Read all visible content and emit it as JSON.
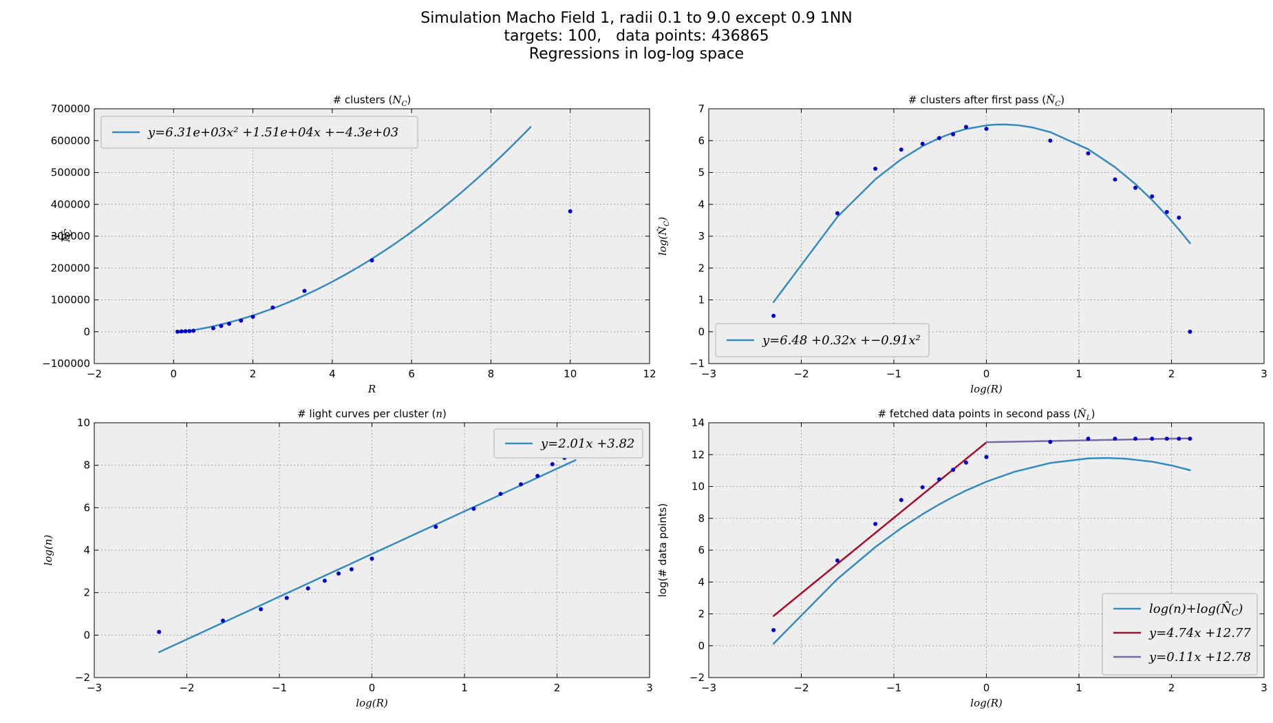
{
  "figure": {
    "title_lines": [
      "Simulation Macho Field 1, radii 0.1 to 9.0 except 0.9 1NN",
      "targets: 100,   data points: 436865",
      "Regressions in log-log space"
    ],
    "colors": {
      "points": "#0000cc",
      "fit_blue": "#348abd",
      "fit_red": "#a60628",
      "fit_purple": "#7a68a6",
      "axes_bg": "#eeeeee"
    }
  },
  "chart_data": [
    {
      "id": "clusters",
      "type": "scatter",
      "title": "# clusters (N_C)",
      "title_main": "# clusters (",
      "title_sym": "N",
      "title_sub": "C",
      "title_end": ")",
      "xlabel": "R",
      "ylabel_num": "1",
      "ylabel_den": "N",
      "ylabel_den_sub": "C",
      "xlim": [
        -2,
        12
      ],
      "ylim": [
        -100000,
        700000
      ],
      "xticks": [
        -2,
        0,
        2,
        4,
        6,
        8,
        10,
        12
      ],
      "yticks": [
        -100000,
        0,
        100000,
        200000,
        300000,
        400000,
        500000,
        600000,
        700000
      ],
      "grid": true,
      "legend_position": "upper-left",
      "points": {
        "x": [
          0.1,
          0.2,
          0.3,
          0.4,
          0.5,
          1.0,
          1.2,
          1.4,
          1.7,
          2.0,
          2.5,
          3.3,
          5.0,
          10.0
        ],
        "y": [
          0,
          1000,
          1500,
          2000,
          3000,
          11000,
          18000,
          25000,
          35000,
          47000,
          76000,
          128000,
          224000,
          378000
        ]
      },
      "series": [
        {
          "name": "y=6.31e+03x² +1.51e+04x +−4.3e+03",
          "color": "#348abd",
          "kind": "poly",
          "coef": [
            -4300,
            15100,
            6310
          ],
          "xrange": [
            0.1,
            9.0
          ]
        }
      ]
    },
    {
      "id": "first-pass",
      "type": "scatter",
      "title": "# clusters after first pass (N̂_C)",
      "title_main": "# clusters after first pass (",
      "title_sym": "N̂",
      "title_sub": "C",
      "title_end": ")",
      "xlabel": "log(R)",
      "ylabel": "log(N̂_C)",
      "ylabel_main": "log(",
      "ylabel_sym": "N̂",
      "ylabel_sub": "C",
      "ylabel_end": ")",
      "xlim": [
        -3,
        3
      ],
      "ylim": [
        -1,
        7
      ],
      "xticks": [
        -3,
        -2,
        -1,
        0,
        1,
        2,
        3
      ],
      "yticks": [
        -1,
        0,
        1,
        2,
        3,
        4,
        5,
        6,
        7
      ],
      "grid": true,
      "legend_position": "lower-left",
      "points": {
        "x": [
          -2.3,
          -1.61,
          -1.2,
          -0.92,
          -0.69,
          -0.51,
          -0.36,
          -0.22,
          0.0,
          0.69,
          1.1,
          1.39,
          1.61,
          1.79,
          1.95,
          2.08,
          2.2
        ],
        "y": [
          0.5,
          3.72,
          5.12,
          5.72,
          5.9,
          6.08,
          6.2,
          6.43,
          6.37,
          6.0,
          5.6,
          4.78,
          4.52,
          4.25,
          3.76,
          3.58,
          0.0
        ]
      },
      "series": [
        {
          "name": "y=6.48 +0.32x +−0.91x²",
          "color": "#348abd",
          "kind": "poly_sampled",
          "coef": [
            6.48,
            0.32,
            -0.91
          ],
          "xs": [
            -2.3,
            -1.61,
            -1.2,
            -0.92,
            -0.69,
            -0.51,
            -0.36,
            -0.22,
            0.0,
            0.1,
            0.2,
            0.35,
            0.5,
            0.69,
            1.1,
            1.39,
            1.61,
            1.79,
            1.95,
            2.08,
            2.2
          ]
        }
      ]
    },
    {
      "id": "light-curves",
      "type": "scatter",
      "title": "# light curves per cluster (n)",
      "title_main": "# light curves per cluster (",
      "title_sym": "n",
      "title_end": ")",
      "xlabel": "log(R)",
      "ylabel": "log(n)",
      "xlim": [
        -3,
        3
      ],
      "ylim": [
        -2,
        10
      ],
      "xticks": [
        -3,
        -2,
        -1,
        0,
        1,
        2,
        3
      ],
      "yticks": [
        -2,
        0,
        2,
        4,
        6,
        8,
        10
      ],
      "grid": true,
      "legend_position": "upper-right",
      "points": {
        "x": [
          -2.3,
          -1.61,
          -1.2,
          -0.92,
          -0.69,
          -0.51,
          -0.36,
          -0.22,
          0.0,
          0.69,
          1.1,
          1.39,
          1.61,
          1.79,
          1.95,
          2.08
        ],
        "y": [
          0.15,
          0.68,
          1.22,
          1.75,
          2.2,
          2.56,
          2.9,
          3.1,
          3.6,
          5.1,
          5.95,
          6.65,
          7.1,
          7.5,
          8.05,
          8.35
        ]
      },
      "series": [
        {
          "name": "y=2.01x +3.82",
          "color": "#348abd",
          "kind": "poly",
          "coef": [
            3.82,
            2.01
          ],
          "xrange": [
            -2.3,
            2.2
          ]
        }
      ]
    },
    {
      "id": "fetched",
      "type": "line",
      "title": "# fetched data points in second pass (N̂_L)",
      "title_main": "# fetched data points in second pass (",
      "title_sym": "N̂",
      "title_sub": "L",
      "title_end": ")",
      "xlabel": "log(R)",
      "ylabel": "log(# data points)",
      "xlim": [
        -3,
        3
      ],
      "ylim": [
        -2,
        14
      ],
      "xticks": [
        -3,
        -2,
        -1,
        0,
        1,
        2,
        3
      ],
      "yticks": [
        -2,
        0,
        2,
        4,
        6,
        8,
        10,
        12,
        14
      ],
      "grid": true,
      "legend_position": "lower-right",
      "points": {
        "x": [
          -2.3,
          -1.61,
          -1.2,
          -0.92,
          -0.69,
          -0.51,
          -0.36,
          -0.22,
          0.0,
          0.69,
          1.1,
          1.39,
          1.61,
          1.79,
          1.95,
          2.08,
          2.2
        ],
        "y": [
          0.98,
          5.35,
          7.65,
          9.15,
          9.95,
          10.45,
          11.05,
          11.5,
          11.85,
          12.8,
          13.0,
          13.0,
          13.0,
          13.0,
          13.0,
          13.0,
          13.0
        ]
      },
      "series": [
        {
          "name": "log(n)+log(N̂_C)",
          "legend_main": "log(n)+log(",
          "legend_sym": "N̂",
          "legend_sub": "C",
          "legend_end": ")",
          "color": "#348abd",
          "kind": "poly_sampled",
          "coef": [
            10.3,
            2.33,
            -0.91
          ],
          "xs": [
            -2.3,
            -1.61,
            -1.2,
            -0.92,
            -0.69,
            -0.51,
            -0.36,
            -0.22,
            0.0,
            0.3,
            0.69,
            1.1,
            1.3,
            1.5,
            1.79,
            2.0,
            2.2
          ]
        },
        {
          "name": "y=4.74x +12.77",
          "color": "#a60628",
          "kind": "poly",
          "coef": [
            12.77,
            4.74
          ],
          "xrange": [
            -2.3,
            0.0
          ]
        },
        {
          "name": "y=0.11x +12.78",
          "color": "#7a68a6",
          "kind": "poly",
          "coef": [
            12.78,
            0.11
          ],
          "xrange": [
            0.0,
            2.2
          ]
        }
      ]
    }
  ]
}
